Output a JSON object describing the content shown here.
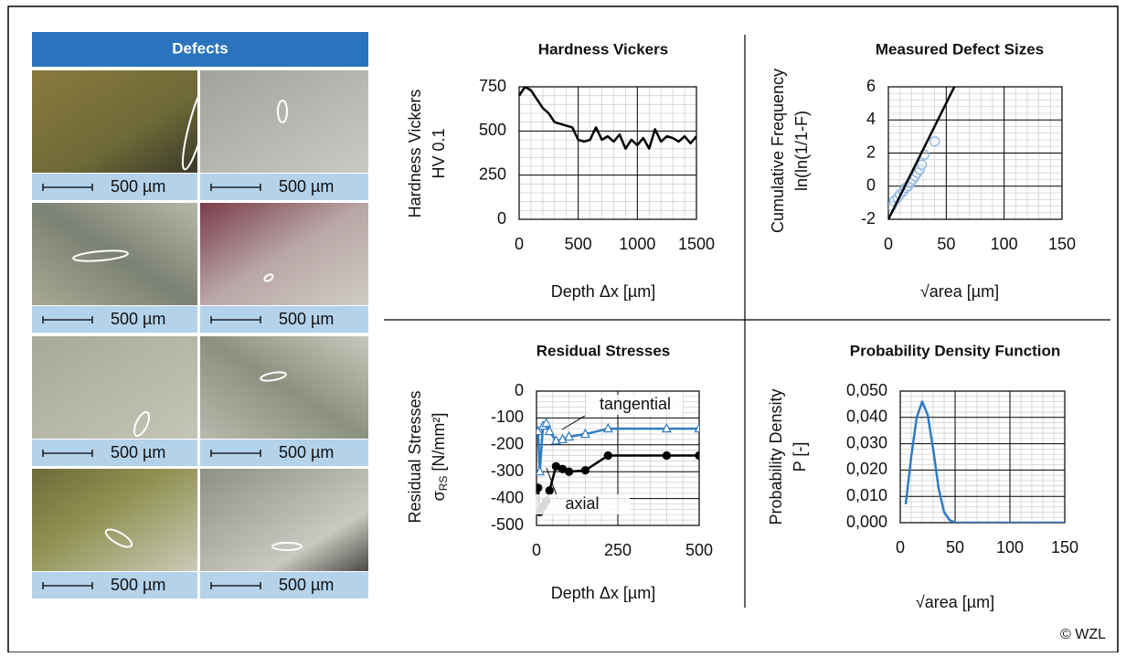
{
  "defects": {
    "title": "Defects",
    "scale_labels": [
      "500 µm",
      "500 µm",
      "500 µm",
      "500 µm",
      "500 µm",
      "500 µm",
      "500 µm",
      "500 µm"
    ]
  },
  "credit": "© WZL",
  "chart_data": [
    {
      "type": "line",
      "title": "Hardness Vickers",
      "ylabel": [
        "Hardness Vickers",
        "HV 0.1"
      ],
      "xlabel": "Depth Δx [µm]",
      "xlim": [
        0,
        1500
      ],
      "xticks": [
        0,
        500,
        1000,
        1500
      ],
      "ylim": [
        0,
        750
      ],
      "yticks": [
        0,
        250,
        500,
        750
      ],
      "grid": true,
      "series": [
        {
          "color": "#000000",
          "marker": "none",
          "line": true,
          "x": [
            0,
            50,
            100,
            150,
            200,
            250,
            300,
            400,
            450,
            500,
            550,
            600,
            650,
            700,
            750,
            800,
            850,
            900,
            950,
            1000,
            1050,
            1100,
            1150,
            1200,
            1250,
            1300,
            1350,
            1400,
            1450,
            1500
          ],
          "values": [
            700,
            750,
            730,
            680,
            630,
            600,
            550,
            530,
            520,
            450,
            440,
            450,
            520,
            450,
            470,
            440,
            480,
            400,
            450,
            420,
            460,
            400,
            510,
            440,
            470,
            460,
            440,
            470,
            430,
            470
          ]
        }
      ]
    },
    {
      "type": "scatter",
      "title": "Measured Defect Sizes",
      "ylabel": [
        "Cumulative Frequency",
        "ln(ln(1/1-F)"
      ],
      "xlabel": "√area [µm]",
      "xlim": [
        0,
        150
      ],
      "xticks": [
        0,
        50,
        100,
        150
      ],
      "ylim": [
        -2,
        6
      ],
      "yticks": [
        -2,
        0,
        2,
        4,
        6
      ],
      "grid": true,
      "series": [
        {
          "color": "#8fb4e3",
          "marker": "circle",
          "line": false,
          "x": [
            3,
            5,
            8,
            10,
            13,
            15,
            17,
            19,
            21,
            23,
            25,
            27,
            29,
            31,
            40
          ],
          "values": [
            -1.2,
            -0.9,
            -0.7,
            -0.5,
            -0.3,
            -0.1,
            0,
            0.2,
            0.4,
            0.6,
            0.8,
            1.0,
            1.3,
            1.9,
            2.7
          ]
        },
        {
          "color": "#000000",
          "marker": "none",
          "line": true,
          "x": [
            0,
            57
          ],
          "values": [
            -2,
            6
          ]
        }
      ]
    },
    {
      "type": "line",
      "title": "Residual Stresses",
      "ylabel": [
        "Residual Stresses",
        {
          "symbol": "σ",
          "sub": "RS",
          "unit": " [N/mm²]"
        }
      ],
      "xlabel": "Depth Δx [µm]",
      "xlim": [
        0,
        500
      ],
      "xticks": [
        0,
        250,
        500
      ],
      "ylim": [
        -500,
        0
      ],
      "yticks": [
        0,
        -100,
        -200,
        -300,
        -400,
        -500
      ],
      "grid": true,
      "series": [
        {
          "name": "tangential",
          "color": "#2e7bc4",
          "marker": "triangle",
          "line": true,
          "x": [
            5,
            10,
            20,
            30,
            40,
            60,
            80,
            100,
            150,
            220,
            400,
            500
          ],
          "values": [
            -150,
            -300,
            -130,
            -120,
            -150,
            -185,
            -180,
            -170,
            -160,
            -140,
            -140,
            -140
          ]
        },
        {
          "name": "axial",
          "color": "#000000",
          "marker": "circle",
          "line": true,
          "x": [
            5,
            10,
            20,
            30,
            40,
            60,
            80,
            100,
            150,
            220,
            400,
            500
          ],
          "values": [
            -360,
            -450,
            -430,
            -410,
            -370,
            -280,
            -290,
            -300,
            -295,
            -240,
            -240,
            -240
          ]
        }
      ]
    },
    {
      "type": "line",
      "title": "Probability Density Function",
      "ylabel": [
        "Probability Density",
        "P [-]"
      ],
      "xlabel": "√area [µm]",
      "xlim": [
        0,
        150
      ],
      "xticks": [
        0,
        50,
        100,
        150
      ],
      "ylim": [
        0,
        0.05
      ],
      "yticks": [
        {
          "value": 0,
          "label": "0,000"
        },
        {
          "value": 0.01,
          "label": "0,010"
        },
        {
          "value": 0.02,
          "label": "0,020"
        },
        {
          "value": 0.03,
          "label": "0,030"
        },
        {
          "value": 0.04,
          "label": "0,040"
        },
        {
          "value": 0.05,
          "label": "0,050"
        }
      ],
      "grid": true,
      "series": [
        {
          "color": "#2e7bc4",
          "marker": "none",
          "line": true,
          "x": [
            5,
            10,
            15,
            20,
            25,
            30,
            35,
            40,
            45,
            50,
            150
          ],
          "values": [
            0.007,
            0.025,
            0.04,
            0.046,
            0.041,
            0.028,
            0.013,
            0.004,
            0.001,
            0,
            0
          ]
        }
      ]
    }
  ]
}
